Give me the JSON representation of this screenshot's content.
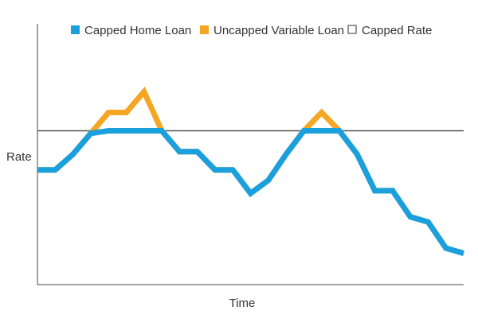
{
  "chart_data": {
    "type": "line",
    "xlabel": "Time",
    "ylabel": "Rate",
    "ylim": [
      0,
      100
    ],
    "x": [
      0,
      1,
      2,
      3,
      4,
      5,
      6,
      7,
      8,
      9,
      10,
      11,
      12,
      13,
      14,
      15,
      16,
      17,
      18,
      19,
      20,
      21,
      22,
      23,
      24
    ],
    "cap_rate": 59,
    "series": [
      {
        "name": "Uncapped Variable Loan",
        "color": "#f5a623",
        "values": [
          44,
          44,
          50,
          58,
          66,
          66,
          74,
          59,
          51,
          51,
          44,
          44,
          35,
          40,
          50,
          59,
          66,
          59,
          50,
          36,
          36,
          26,
          24,
          14,
          12
        ]
      },
      {
        "name": "Capped Home Loan",
        "color": "#1aa0dc",
        "values": [
          44,
          44,
          50,
          58,
          59,
          59,
          59,
          59,
          51,
          51,
          44,
          44,
          35,
          40,
          50,
          59,
          59,
          59,
          50,
          36,
          36,
          26,
          24,
          14,
          12
        ]
      }
    ],
    "legend": {
      "position": "top",
      "items": [
        {
          "label": "Capped Home Loan",
          "color": "#1aa0dc",
          "style": "filled"
        },
        {
          "label": "Uncapped Variable Loan",
          "color": "#f5a623",
          "style": "filled"
        },
        {
          "label": "Capped Rate",
          "color": "#555555",
          "style": "outline"
        }
      ]
    }
  }
}
